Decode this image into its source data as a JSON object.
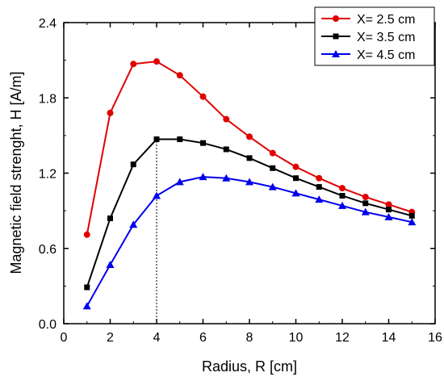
{
  "chart_data": {
    "type": "line",
    "title": "",
    "xlabel": "Radius, R [cm]",
    "ylabel": "Magnetic field strenght, H [A/m]",
    "xlim": [
      0,
      16
    ],
    "ylim": [
      0.0,
      2.4
    ],
    "x_ticks": [
      0,
      2,
      4,
      6,
      8,
      10,
      12,
      14,
      16
    ],
    "x_tick_labels": [
      "0",
      "2",
      "4",
      "6",
      "8",
      "10",
      "12",
      "14",
      "16"
    ],
    "y_ticks": [
      0.0,
      0.6,
      1.2,
      1.8,
      2.4
    ],
    "y_tick_labels": [
      "0.0",
      "0.6",
      "1.2",
      "1.8",
      "2.4"
    ],
    "grid": false,
    "legend_position": "top-right",
    "reference_line": {
      "x": 4,
      "y_from": 0.0,
      "y_to": 1.47,
      "style": "dotted"
    },
    "x": [
      1,
      2,
      3,
      4,
      5,
      6,
      7,
      8,
      9,
      10,
      11,
      12,
      13,
      14,
      15
    ],
    "series": [
      {
        "name": "X= 2.5 cm",
        "color": "#e00000",
        "marker": "circle",
        "values": [
          0.71,
          1.68,
          2.07,
          2.09,
          1.98,
          1.81,
          1.63,
          1.49,
          1.36,
          1.25,
          1.16,
          1.08,
          1.01,
          0.95,
          0.89
        ]
      },
      {
        "name": "X= 3.5 cm",
        "color": "#000000",
        "marker": "square",
        "values": [
          0.29,
          0.84,
          1.27,
          1.47,
          1.47,
          1.44,
          1.39,
          1.32,
          1.24,
          1.16,
          1.09,
          1.02,
          0.96,
          0.91,
          0.86
        ]
      },
      {
        "name": "X= 4.5 cm",
        "color": "#0000ee",
        "marker": "triangle",
        "values": [
          0.14,
          0.47,
          0.79,
          1.02,
          1.13,
          1.17,
          1.16,
          1.13,
          1.09,
          1.04,
          0.99,
          0.94,
          0.89,
          0.85,
          0.81
        ]
      }
    ]
  }
}
